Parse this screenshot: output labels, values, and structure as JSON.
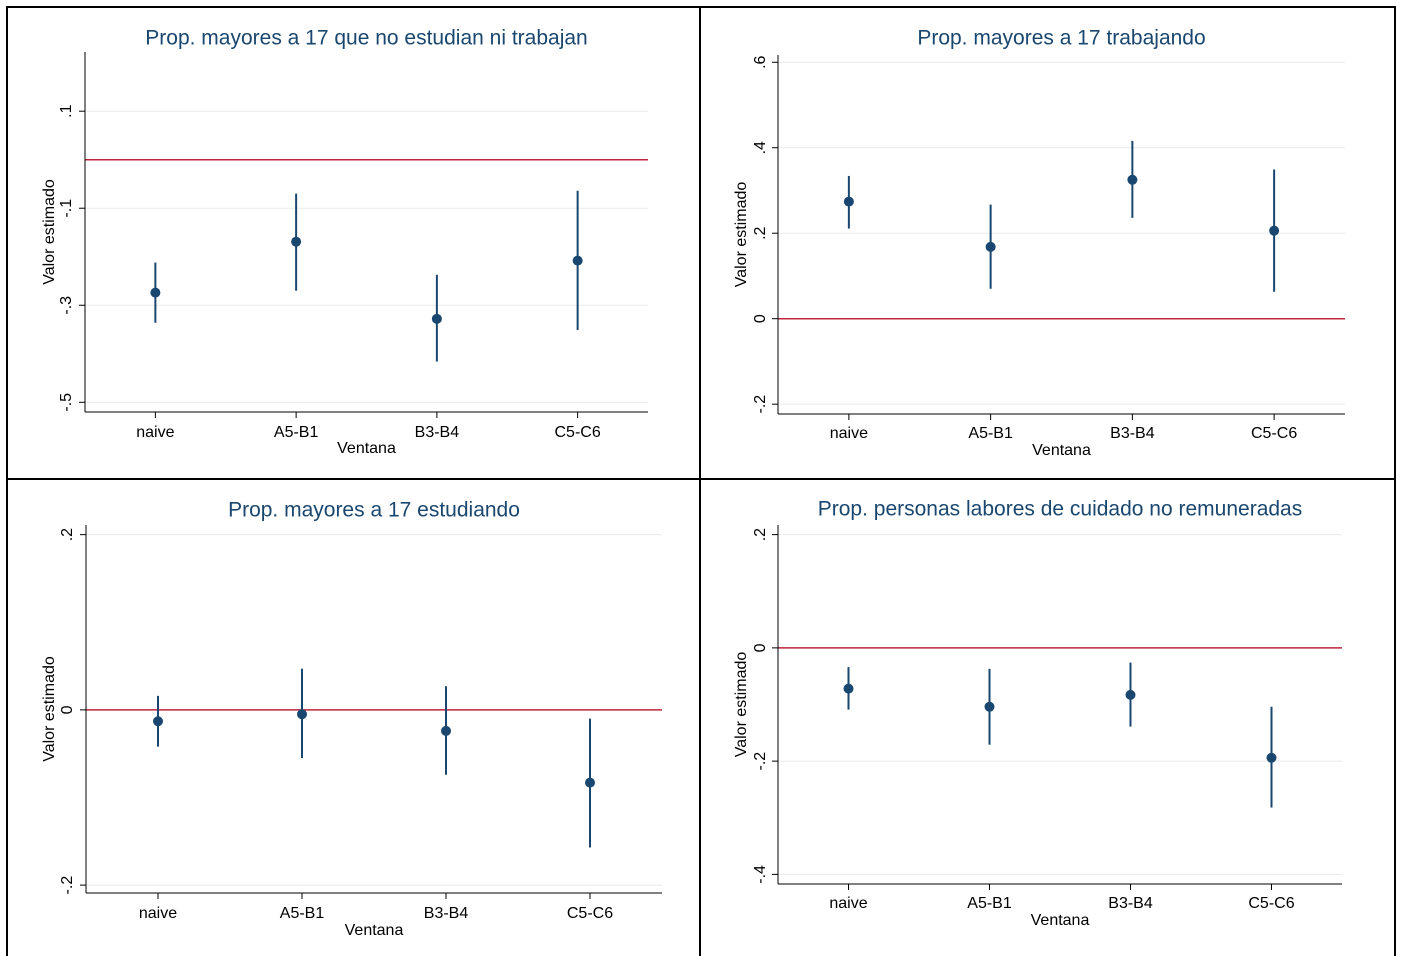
{
  "chart_data": [
    {
      "type": "errorbar",
      "title": "Prop. mayores a 17 que no estudian ni trabajan",
      "x_label": "Ventana",
      "y_label": "Valor estimado",
      "categories": [
        "naive",
        "A5-B1",
        "B3-B4",
        "C5-C6"
      ],
      "values": [
        -0.274,
        -0.169,
        -0.328,
        -0.208
      ],
      "lower": [
        -0.336,
        -0.27,
        -0.416,
        -0.351
      ],
      "upper": [
        -0.212,
        -0.07,
        -0.237,
        -0.064
      ],
      "color": "#1a476f",
      "ylim": [
        -0.52,
        0.222
      ],
      "yticks": [
        {
          "value": 0.1,
          "label": ".1"
        },
        {
          "value": -0.1,
          "label": "-.1"
        },
        {
          "value": -0.3,
          "label": "-.3"
        },
        {
          "value": -0.5,
          "label": "-.5"
        }
      ],
      "grid": true,
      "reference_line": {
        "value": 0,
        "color": "#c0243c"
      }
    },
    {
      "type": "errorbar",
      "title": "Prop. mayores a 17 trabajando",
      "x_label": "Ventana",
      "y_label": "Valor estimado",
      "categories": [
        "naive",
        "A5-B1",
        "B3-B4",
        "C5-C6"
      ],
      "values": [
        0.274,
        0.168,
        0.325,
        0.206
      ],
      "lower": [
        0.211,
        0.07,
        0.236,
        0.063
      ],
      "upper": [
        0.334,
        0.267,
        0.416,
        0.349
      ],
      "color": "#1a476f",
      "ylim": [
        -0.223,
        0.617
      ],
      "yticks": [
        {
          "value": -0.2,
          "label": "-.2"
        },
        0,
        {
          "value": 0.2,
          "label": ".2"
        },
        {
          "value": 0.4,
          "label": ".4"
        },
        {
          "value": 0.6,
          "label": ".6"
        }
      ],
      "grid": true,
      "reference_line": {
        "value": 0,
        "color": "#c0243c"
      }
    },
    {
      "type": "errorbar",
      "title": "Prop. mayores a 17 estudiando",
      "x_label": "Ventana",
      "y_label": "Valor estimado",
      "categories": [
        "naive",
        "A5-B1",
        "B3-B4",
        "C5-C6"
      ],
      "values": [
        -0.013,
        -0.005,
        -0.024,
        -0.083
      ],
      "lower": [
        -0.042,
        -0.055,
        -0.074,
        -0.157
      ],
      "upper": [
        0.016,
        0.047,
        0.027,
        -0.01
      ],
      "color": "#1a476f",
      "ylim": [
        -0.209,
        0.211
      ],
      "yticks": [
        {
          "value": -0.2,
          "label": "-.2"
        },
        0,
        {
          "value": 0.2,
          "label": ".2"
        }
      ],
      "grid": true,
      "reference_line": {
        "value": 0,
        "color": "#c0243c"
      }
    },
    {
      "type": "errorbar",
      "title": "Prop. personas labores de cuidado no remuneradas",
      "x_label": "Ventana",
      "y_label": "Valor estimado",
      "categories": [
        "naive",
        "A5-B1",
        "B3-B4",
        "C5-C6"
      ],
      "values": [
        -0.072,
        -0.104,
        -0.083,
        -0.194
      ],
      "lower": [
        -0.109,
        -0.171,
        -0.139,
        -0.282
      ],
      "upper": [
        -0.034,
        -0.037,
        -0.026,
        -0.104
      ],
      "color": "#1a476f",
      "ylim": [
        -0.417,
        0.217
      ],
      "yticks": [
        {
          "value": -0.4,
          "label": "-.4"
        },
        {
          "value": -0.2,
          "label": "-.2"
        },
        0,
        {
          "value": 0.2,
          "label": ".2"
        }
      ],
      "grid": true,
      "reference_line": {
        "value": 0,
        "color": "#c0243c"
      }
    }
  ]
}
